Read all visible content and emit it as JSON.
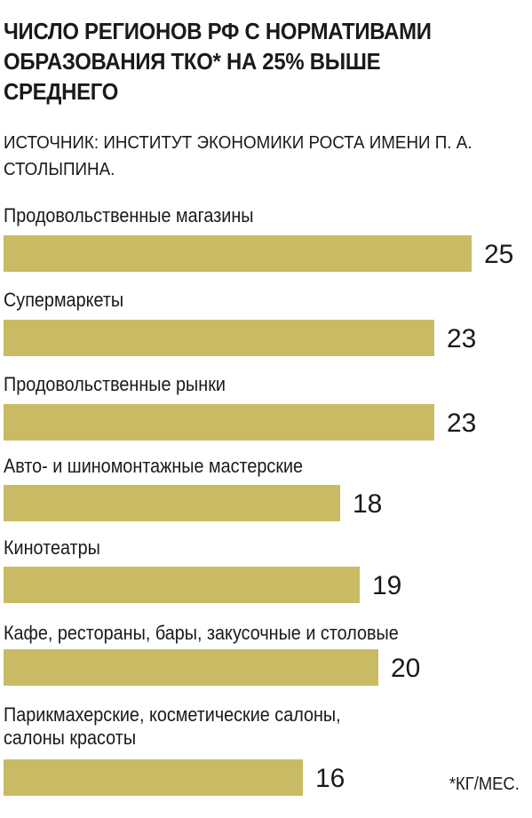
{
  "title": "Число регионов РФ с нормативами образования ТКО* на 25% выше среднего",
  "source": "Источник: Институт экономики роста имени П. А. Столыпина.",
  "footnote": "*кг/мес.",
  "colors": {
    "bar": "#c8bb63",
    "text": "#1a1a1a"
  },
  "chart_data": {
    "type": "bar",
    "orientation": "horizontal",
    "categories": [
      "Продовольственные магазины",
      "Супермаркеты",
      "Продовольственные рынки",
      "Авто- и шиномонтажные мастерские",
      "Кинотеатры",
      "Кафе, рестораны, бары, закусочные и столовые",
      "Парикмахерские, косметические салоны,\nсалоны красоты"
    ],
    "values": [
      25,
      23,
      23,
      18,
      19,
      20,
      16
    ],
    "data_labels": [
      "25",
      "23",
      "23",
      "18",
      "19",
      "20",
      "16"
    ],
    "xlim": [
      0,
      25
    ]
  }
}
